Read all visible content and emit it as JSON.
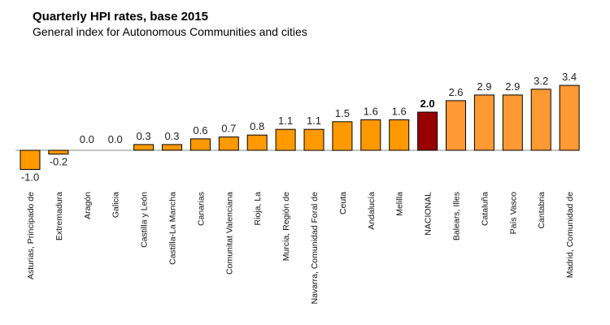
{
  "chart_data": {
    "type": "bar",
    "title": "Quarterly HPI rates, base 2015",
    "subtitle": "General index for Autonomous Communities and cities",
    "xlabel": "",
    "ylabel": "",
    "ylim": [
      -1.2,
      3.6
    ],
    "categories": [
      "Asturias, Principado de",
      "Extremadura",
      "Aragón",
      "Galicia",
      "Castilla y León",
      "Castilla-La Mancha",
      "Canarias",
      "Comunitat Valenciana",
      "Rioja, La",
      "Murcia, Región de",
      "Navarra, Comunidad Foral de",
      "Ceuta",
      "Andalucía",
      "Melilla",
      "NACIONAL",
      "Balears, Illes",
      "Cataluña",
      "País Vasco",
      "Cantabria",
      "Madrid, Comunidad de"
    ],
    "values": [
      -1.0,
      -0.2,
      0.0,
      0.0,
      0.3,
      0.3,
      0.6,
      0.7,
      0.8,
      1.1,
      1.1,
      1.5,
      1.6,
      1.6,
      2.0,
      2.6,
      2.9,
      2.9,
      3.2,
      3.4
    ],
    "value_labels": [
      "-1.0",
      "-0.2",
      "0.0",
      "0.0",
      "0.3",
      "0.3",
      "0.6",
      "0.7",
      "0.8",
      "1.1",
      "1.1",
      "1.5",
      "1.6",
      "1.6",
      "2.0",
      "2.6",
      "2.9",
      "2.9",
      "3.2",
      "3.4"
    ],
    "highlight_category": "NACIONAL",
    "colors": {
      "bar": "#FF9900",
      "bar_above_national": "#FF9933",
      "highlight": "#990000",
      "outline": "#000000",
      "axis": "#888888"
    }
  }
}
